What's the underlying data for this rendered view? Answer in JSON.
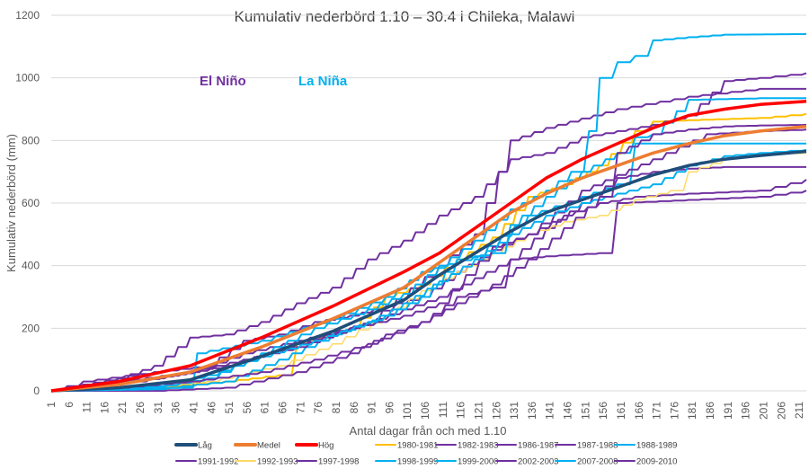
{
  "chart_data": {
    "type": "line",
    "title": "Kumulativ nederbörd 1.10 – 30.4 i Chileka, Malawi",
    "xlabel": "Antal dagar från och med 1.10",
    "ylabel": "Kumulativ nederbörd (mm)",
    "xlim": [
      1,
      213
    ],
    "ylim": [
      0,
      1200
    ],
    "yticks": [
      0,
      200,
      400,
      600,
      800,
      1000,
      1200
    ],
    "xticks": [
      1,
      6,
      11,
      16,
      21,
      26,
      31,
      36,
      41,
      46,
      51,
      56,
      61,
      66,
      71,
      76,
      81,
      86,
      91,
      96,
      101,
      106,
      111,
      116,
      121,
      126,
      131,
      136,
      141,
      146,
      151,
      156,
      161,
      166,
      171,
      176,
      181,
      186,
      191,
      196,
      201,
      206,
      211
    ],
    "grid": "horizontal",
    "legend_position": "bottom",
    "annotations": [
      {
        "text": "El Niño",
        "color": "#7030A0"
      },
      {
        "text": "La Niña",
        "color": "#00B0F0"
      }
    ],
    "series": [
      {
        "name": "Låg",
        "color": "#1F4E79",
        "width": 3.5,
        "points": [
          [
            1,
            0
          ],
          [
            20,
            10
          ],
          [
            40,
            35
          ],
          [
            60,
            110
          ],
          [
            80,
            190
          ],
          [
            100,
            290
          ],
          [
            110,
            370
          ],
          [
            120,
            440
          ],
          [
            130,
            510
          ],
          [
            140,
            570
          ],
          [
            150,
            610
          ],
          [
            160,
            650
          ],
          [
            170,
            690
          ],
          [
            180,
            720
          ],
          [
            190,
            740
          ],
          [
            200,
            752
          ],
          [
            213,
            765
          ]
        ]
      },
      {
        "name": "Medel",
        "color": "#ED7D31",
        "width": 3.5,
        "points": [
          [
            1,
            0
          ],
          [
            20,
            20
          ],
          [
            40,
            60
          ],
          [
            60,
            140
          ],
          [
            80,
            230
          ],
          [
            100,
            330
          ],
          [
            110,
            410
          ],
          [
            120,
            490
          ],
          [
            130,
            570
          ],
          [
            140,
            630
          ],
          [
            150,
            680
          ],
          [
            160,
            720
          ],
          [
            170,
            760
          ],
          [
            180,
            790
          ],
          [
            190,
            815
          ],
          [
            200,
            830
          ],
          [
            213,
            845
          ]
        ]
      },
      {
        "name": "Hög",
        "color": "#FF0000",
        "width": 3.5,
        "points": [
          [
            1,
            0
          ],
          [
            20,
            30
          ],
          [
            40,
            80
          ],
          [
            60,
            170
          ],
          [
            80,
            270
          ],
          [
            100,
            380
          ],
          [
            110,
            440
          ],
          [
            120,
            520
          ],
          [
            130,
            600
          ],
          [
            140,
            680
          ],
          [
            150,
            740
          ],
          [
            160,
            790
          ],
          [
            170,
            840
          ],
          [
            180,
            880
          ],
          [
            190,
            900
          ],
          [
            200,
            915
          ],
          [
            213,
            925
          ]
        ]
      },
      {
        "name": "1980-1981",
        "color": "#FFC000",
        "width": 2,
        "points": [
          [
            1,
            0
          ],
          [
            30,
            10
          ],
          [
            50,
            30
          ],
          [
            65,
            50
          ],
          [
            70,
            150
          ],
          [
            85,
            200
          ],
          [
            95,
            300
          ],
          [
            105,
            340
          ],
          [
            115,
            420
          ],
          [
            125,
            490
          ],
          [
            135,
            620
          ],
          [
            145,
            660
          ],
          [
            155,
            720
          ],
          [
            165,
            830
          ],
          [
            170,
            860
          ],
          [
            180,
            865
          ],
          [
            200,
            872
          ],
          [
            213,
            885
          ]
        ]
      },
      {
        "name": "1982-1983",
        "color": "#7030A0",
        "width": 2,
        "points": [
          [
            1,
            0
          ],
          [
            30,
            0
          ],
          [
            50,
            10
          ],
          [
            70,
            60
          ],
          [
            85,
            120
          ],
          [
            95,
            180
          ],
          [
            105,
            220
          ],
          [
            115,
            300
          ],
          [
            125,
            330
          ],
          [
            130,
            420
          ],
          [
            140,
            430
          ],
          [
            155,
            440
          ],
          [
            160,
            600
          ],
          [
            180,
            610
          ],
          [
            200,
            620
          ],
          [
            213,
            640
          ]
        ]
      },
      {
        "name": "1986-1987",
        "color": "#7030A0",
        "width": 2,
        "points": [
          [
            1,
            0
          ],
          [
            10,
            30
          ],
          [
            30,
            60
          ],
          [
            45,
            80
          ],
          [
            55,
            160
          ],
          [
            65,
            180
          ],
          [
            75,
            220
          ],
          [
            85,
            240
          ],
          [
            95,
            270
          ],
          [
            105,
            300
          ],
          [
            115,
            380
          ],
          [
            125,
            450
          ],
          [
            135,
            500
          ],
          [
            145,
            560
          ],
          [
            155,
            600
          ],
          [
            165,
            620
          ],
          [
            180,
            630
          ],
          [
            200,
            640
          ],
          [
            213,
            675
          ]
        ]
      },
      {
        "name": "1987-1988",
        "color": "#7030A0",
        "width": 2,
        "points": [
          [
            1,
            0
          ],
          [
            15,
            20
          ],
          [
            30,
            40
          ],
          [
            50,
            80
          ],
          [
            70,
            150
          ],
          [
            90,
            220
          ],
          [
            110,
            400
          ],
          [
            120,
            500
          ],
          [
            130,
            800
          ],
          [
            140,
            840
          ],
          [
            150,
            870
          ],
          [
            160,
            900
          ],
          [
            180,
            940
          ],
          [
            200,
            965
          ],
          [
            213,
            965
          ]
        ]
      },
      {
        "name": "1988-1989",
        "color": "#00B0F0",
        "width": 2,
        "points": [
          [
            1,
            0
          ],
          [
            20,
            5
          ],
          [
            38,
            10
          ],
          [
            42,
            120
          ],
          [
            60,
            160
          ],
          [
            80,
            230
          ],
          [
            95,
            300
          ],
          [
            105,
            380
          ],
          [
            120,
            430
          ],
          [
            135,
            560
          ],
          [
            150,
            620
          ],
          [
            160,
            660
          ],
          [
            165,
            790
          ],
          [
            180,
            790
          ],
          [
            200,
            790
          ],
          [
            213,
            790
          ]
        ]
      },
      {
        "name": "1991-1992",
        "color": "#7030A0",
        "width": 2,
        "points": [
          [
            1,
            0
          ],
          [
            10,
            20
          ],
          [
            25,
            30
          ],
          [
            40,
            60
          ],
          [
            55,
            120
          ],
          [
            70,
            160
          ],
          [
            85,
            200
          ],
          [
            100,
            260
          ],
          [
            110,
            300
          ],
          [
            120,
            360
          ],
          [
            130,
            420
          ],
          [
            140,
            520
          ],
          [
            150,
            600
          ],
          [
            160,
            680
          ],
          [
            170,
            700
          ],
          [
            180,
            710
          ],
          [
            190,
            715
          ],
          [
            213,
            715
          ]
        ]
      },
      {
        "name": "1992-1993",
        "color": "#FFD966",
        "width": 1.5,
        "points": [
          [
            1,
            0
          ],
          [
            25,
            10
          ],
          [
            45,
            30
          ],
          [
            65,
            80
          ],
          [
            80,
            150
          ],
          [
            95,
            240
          ],
          [
            105,
            320
          ],
          [
            115,
            380
          ],
          [
            125,
            440
          ],
          [
            135,
            500
          ],
          [
            145,
            540
          ],
          [
            155,
            560
          ],
          [
            165,
            610
          ],
          [
            175,
            640
          ],
          [
            180,
            700
          ],
          [
            190,
            740
          ],
          [
            200,
            755
          ],
          [
            213,
            760
          ]
        ]
      },
      {
        "name": "1997-1998",
        "color": "#7030A0",
        "width": 2,
        "points": [
          [
            1,
            0
          ],
          [
            10,
            20
          ],
          [
            20,
            40
          ],
          [
            30,
            80
          ],
          [
            40,
            170
          ],
          [
            50,
            180
          ],
          [
            60,
            220
          ],
          [
            70,
            280
          ],
          [
            80,
            330
          ],
          [
            90,
            420
          ],
          [
            100,
            480
          ],
          [
            110,
            560
          ],
          [
            120,
            620
          ],
          [
            130,
            740
          ],
          [
            140,
            760
          ],
          [
            150,
            810
          ],
          [
            160,
            830
          ],
          [
            170,
            850
          ],
          [
            180,
            880
          ],
          [
            190,
            990
          ],
          [
            200,
            1000
          ],
          [
            213,
            1015
          ]
        ]
      },
      {
        "name": "1998-1999",
        "color": "#00B0F0",
        "width": 2,
        "points": [
          [
            1,
            0
          ],
          [
            30,
            5
          ],
          [
            50,
            30
          ],
          [
            65,
            100
          ],
          [
            80,
            180
          ],
          [
            95,
            240
          ],
          [
            105,
            300
          ],
          [
            115,
            420
          ],
          [
            125,
            440
          ],
          [
            130,
            530
          ],
          [
            140,
            620
          ],
          [
            150,
            700
          ],
          [
            160,
            760
          ],
          [
            165,
            810
          ],
          [
            170,
            820
          ],
          [
            180,
            930
          ],
          [
            200,
            935
          ],
          [
            213,
            935
          ]
        ]
      },
      {
        "name": "1999-2000",
        "color": "#00B0F0",
        "width": 2,
        "points": [
          [
            1,
            0
          ],
          [
            30,
            10
          ],
          [
            45,
            40
          ],
          [
            60,
            120
          ],
          [
            75,
            200
          ],
          [
            90,
            260
          ],
          [
            100,
            310
          ],
          [
            110,
            400
          ],
          [
            120,
            480
          ],
          [
            130,
            580
          ],
          [
            140,
            640
          ],
          [
            147,
            700
          ],
          [
            152,
            830
          ],
          [
            155,
            1000
          ],
          [
            160,
            1050
          ],
          [
            165,
            1070
          ],
          [
            170,
            1120
          ],
          [
            180,
            1130
          ],
          [
            190,
            1138
          ],
          [
            213,
            1140
          ]
        ]
      },
      {
        "name": "2002-2003",
        "color": "#7030A0",
        "width": 2,
        "points": [
          [
            1,
            0
          ],
          [
            20,
            30
          ],
          [
            40,
            60
          ],
          [
            55,
            100
          ],
          [
            70,
            140
          ],
          [
            85,
            200
          ],
          [
            100,
            240
          ],
          [
            110,
            280
          ],
          [
            125,
            460
          ],
          [
            135,
            500
          ],
          [
            150,
            640
          ],
          [
            160,
            690
          ],
          [
            170,
            740
          ],
          [
            185,
            820
          ],
          [
            200,
            830
          ],
          [
            213,
            835
          ]
        ]
      },
      {
        "name": "2007-2008",
        "color": "#00B0F0",
        "width": 2,
        "points": [
          [
            1,
            0
          ],
          [
            30,
            15
          ],
          [
            45,
            50
          ],
          [
            60,
            110
          ],
          [
            75,
            160
          ],
          [
            90,
            220
          ],
          [
            100,
            280
          ],
          [
            110,
            350
          ],
          [
            120,
            420
          ],
          [
            130,
            500
          ],
          [
            140,
            560
          ],
          [
            150,
            600
          ],
          [
            160,
            630
          ],
          [
            170,
            660
          ],
          [
            180,
            720
          ],
          [
            190,
            750
          ],
          [
            200,
            760
          ],
          [
            213,
            770
          ]
        ]
      },
      {
        "name": "2009-2010",
        "color": "#7030A0",
        "width": 2,
        "points": [
          [
            1,
            0
          ],
          [
            20,
            10
          ],
          [
            40,
            30
          ],
          [
            60,
            60
          ],
          [
            75,
            100
          ],
          [
            90,
            150
          ],
          [
            105,
            220
          ],
          [
            115,
            280
          ],
          [
            125,
            340
          ],
          [
            135,
            420
          ],
          [
            145,
            520
          ],
          [
            155,
            620
          ],
          [
            160,
            760
          ],
          [
            170,
            820
          ],
          [
            180,
            835
          ],
          [
            190,
            845
          ],
          [
            200,
            848
          ],
          [
            213,
            850
          ]
        ]
      }
    ]
  }
}
